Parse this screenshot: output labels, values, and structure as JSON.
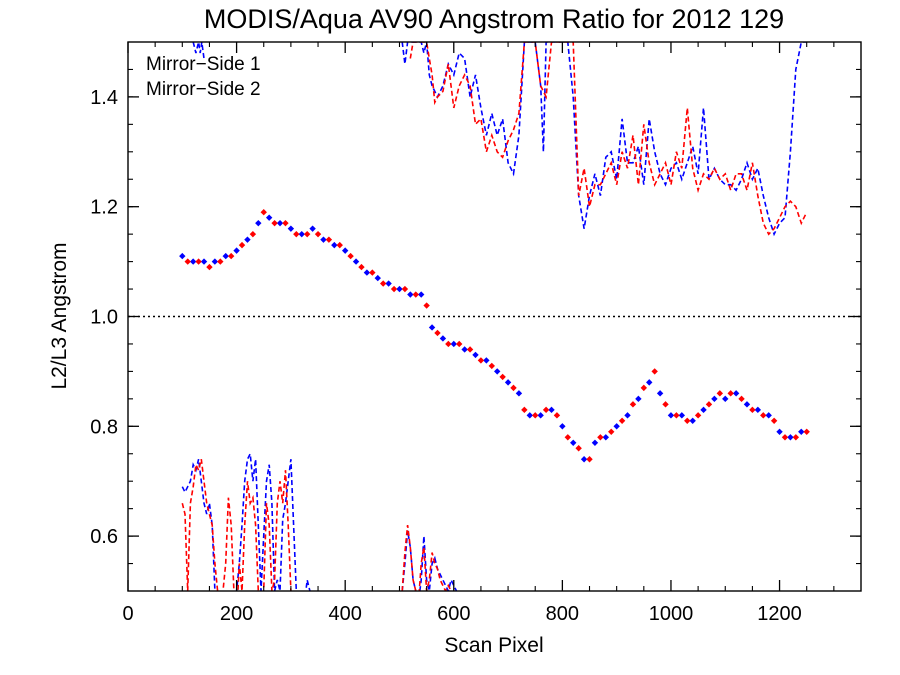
{
  "chart_data": {
    "type": "scatter",
    "title": "MODIS/Aqua AV90 Angstrom Ratio for 2012 129",
    "xlabel": "Scan Pixel",
    "ylabel": "L2/L3 Angstrom",
    "xlim": [
      0,
      1350
    ],
    "ylim": [
      0.5,
      1.5
    ],
    "x_ticks": [
      0,
      200,
      400,
      600,
      800,
      1000,
      1200
    ],
    "x_tick_labels": [
      "0",
      "200",
      "400",
      "600",
      "800",
      "1000",
      "1200"
    ],
    "y_ticks": [
      0.6,
      0.8,
      1.0,
      1.2,
      1.4
    ],
    "y_tick_labels": [
      "0.6",
      "0.8",
      "1.0",
      "1.2",
      "1.4"
    ],
    "reference_line": {
      "y": 1.0,
      "style": "dotted",
      "color": "#000000"
    },
    "legend": {
      "position": "top-left",
      "entries": [
        {
          "label": "Mirror−Side 1",
          "color": "#0000ff"
        },
        {
          "label": "Mirror−Side 2",
          "color": "#ff0000"
        }
      ]
    },
    "grid": false,
    "series": [
      {
        "name": "Mirror−Side 1",
        "color": "#0000ff",
        "marker": "diamond",
        "x": [
          100,
          120,
          140,
          160,
          180,
          200,
          220,
          240,
          260,
          280,
          300,
          320,
          340,
          360,
          380,
          400,
          420,
          440,
          460,
          480,
          500,
          520,
          540,
          560,
          580,
          600,
          620,
          640,
          660,
          680,
          700,
          720,
          740,
          760,
          780,
          800,
          820,
          840,
          860,
          880,
          900,
          920,
          940,
          960,
          980,
          1000,
          1020,
          1040,
          1060,
          1080,
          1100,
          1120,
          1140,
          1160,
          1180,
          1200,
          1220,
          1240
        ],
        "y": [
          1.11,
          1.1,
          1.1,
          1.1,
          1.11,
          1.12,
          1.14,
          1.17,
          1.18,
          1.17,
          1.16,
          1.15,
          1.16,
          1.14,
          1.13,
          1.12,
          1.1,
          1.08,
          1.07,
          1.06,
          1.05,
          1.04,
          1.04,
          0.98,
          0.96,
          0.95,
          0.94,
          0.93,
          0.92,
          0.9,
          0.88,
          0.86,
          0.82,
          0.82,
          0.83,
          0.8,
          0.77,
          0.74,
          0.77,
          0.78,
          0.8,
          0.82,
          0.85,
          0.88,
          0.86,
          0.82,
          0.82,
          0.81,
          0.83,
          0.85,
          0.85,
          0.86,
          0.84,
          0.83,
          0.82,
          0.79,
          0.78,
          0.79
        ]
      },
      {
        "name": "Mirror−Side 2",
        "color": "#ff0000",
        "marker": "diamond",
        "x": [
          110,
          130,
          150,
          170,
          190,
          210,
          230,
          250,
          270,
          290,
          310,
          330,
          350,
          370,
          390,
          410,
          430,
          450,
          470,
          490,
          510,
          530,
          550,
          570,
          590,
          610,
          630,
          650,
          670,
          690,
          710,
          730,
          750,
          770,
          790,
          810,
          830,
          850,
          870,
          890,
          910,
          930,
          950,
          970,
          990,
          1010,
          1030,
          1050,
          1070,
          1090,
          1110,
          1130,
          1150,
          1170,
          1190,
          1210,
          1230,
          1250
        ],
        "y": [
          1.1,
          1.1,
          1.09,
          1.1,
          1.11,
          1.13,
          1.15,
          1.19,
          1.17,
          1.17,
          1.15,
          1.15,
          1.15,
          1.14,
          1.13,
          1.11,
          1.09,
          1.08,
          1.06,
          1.05,
          1.05,
          1.04,
          1.02,
          0.97,
          0.95,
          0.95,
          0.94,
          0.92,
          0.91,
          0.89,
          0.87,
          0.83,
          0.82,
          0.83,
          0.82,
          0.78,
          0.76,
          0.74,
          0.78,
          0.79,
          0.81,
          0.84,
          0.87,
          0.9,
          0.84,
          0.82,
          0.81,
          0.82,
          0.84,
          0.86,
          0.86,
          0.85,
          0.83,
          0.82,
          0.81,
          0.78,
          0.78,
          0.79
        ]
      },
      {
        "name": "",
        "color": "#0000ff",
        "style": "dashed",
        "segments": [
          {
            "x": [
              120,
              125,
              130,
              133,
              136,
              140
            ],
            "y": [
              1.5,
              1.48,
              1.5,
              1.48,
              1.5,
              1.47
            ]
          },
          {
            "x": [
              505,
              510,
              515,
              520,
              525,
              530,
              540,
              545,
              550,
              555,
              560,
              570,
              580,
              590,
              600,
              610,
              620,
              630,
              640,
              650,
              660,
              670,
              680,
              690,
              700,
              710,
              720,
              730,
              740,
              750,
              760,
              765,
              770,
              775,
              780,
              790,
              800,
              810,
              820,
              830,
              840,
              850,
              860,
              870,
              880,
              890,
              900,
              910,
              920,
              930,
              940,
              950,
              960,
              970,
              980,
              990,
              1000,
              1010,
              1020,
              1030,
              1040,
              1050,
              1060,
              1070,
              1080,
              1090,
              1100,
              1110,
              1120,
              1130,
              1140,
              1150,
              1160,
              1170,
              1180,
              1190,
              1200,
              1210,
              1220,
              1230,
              1240,
              1250
            ],
            "y": [
              1.5,
              1.46,
              1.5,
              1.5,
              1.5,
              1.5,
              1.5,
              1.48,
              1.5,
              1.44,
              1.42,
              1.4,
              1.42,
              1.46,
              1.44,
              1.48,
              1.47,
              1.4,
              1.44,
              1.38,
              1.33,
              1.37,
              1.33,
              1.36,
              1.28,
              1.26,
              1.33,
              1.5,
              1.5,
              1.5,
              1.42,
              1.3,
              1.5,
              1.5,
              1.5,
              1.5,
              1.5,
              1.5,
              1.4,
              1.22,
              1.16,
              1.22,
              1.26,
              1.22,
              1.29,
              1.3,
              1.25,
              1.36,
              1.28,
              1.28,
              1.31,
              1.24,
              1.36,
              1.3,
              1.26,
              1.24,
              1.27,
              1.28,
              1.25,
              1.28,
              1.31,
              1.26,
              1.38,
              1.25,
              1.27,
              1.25,
              1.24,
              1.24,
              1.23,
              1.25,
              1.28,
              1.25,
              1.27,
              1.22,
              1.18,
              1.15,
              1.17,
              1.18,
              1.3,
              1.45,
              1.5,
              1.5
            ]
          }
        ]
      },
      {
        "name": "",
        "color": "#ff0000",
        "style": "dashed",
        "segments": [
          {
            "x": [
              520,
              525,
              530,
              535,
              540,
              545,
              550,
              555,
              560,
              565,
              570,
              580,
              590,
              600,
              610,
              620,
              630,
              640,
              650,
              660,
              670,
              680,
              690,
              700,
              710,
              720,
              730,
              740,
              750,
              760,
              770,
              780,
              790,
              800,
              810,
              820,
              830,
              840,
              850,
              860,
              870,
              880,
              890,
              900,
              910,
              920,
              930,
              940,
              950,
              960,
              970,
              980,
              990,
              1000,
              1010,
              1020,
              1030,
              1040,
              1050,
              1060,
              1070,
              1080,
              1090,
              1100,
              1110,
              1120,
              1130,
              1140,
              1150,
              1160,
              1170,
              1180,
              1190,
              1200,
              1210,
              1220,
              1230,
              1240,
              1250
            ],
            "y": [
              1.47,
              1.5,
              1.5,
              1.5,
              1.5,
              1.5,
              1.5,
              1.47,
              1.44,
              1.39,
              1.4,
              1.41,
              1.46,
              1.38,
              1.42,
              1.44,
              1.42,
              1.35,
              1.36,
              1.3,
              1.33,
              1.3,
              1.29,
              1.32,
              1.34,
              1.37,
              1.5,
              1.5,
              1.5,
              1.42,
              1.4,
              1.5,
              1.5,
              1.5,
              1.5,
              1.5,
              1.22,
              1.27,
              1.2,
              1.24,
              1.24,
              1.26,
              1.28,
              1.24,
              1.3,
              1.27,
              1.33,
              1.24,
              1.35,
              1.28,
              1.24,
              1.26,
              1.28,
              1.24,
              1.3,
              1.27,
              1.38,
              1.27,
              1.23,
              1.26,
              1.25,
              1.27,
              1.25,
              1.26,
              1.23,
              1.26,
              1.26,
              1.23,
              1.28,
              1.22,
              1.17,
              1.15,
              1.16,
              1.18,
              1.2,
              1.21,
              1.2,
              1.17,
              1.19
            ]
          }
        ]
      },
      {
        "name": "",
        "color": "#0000ff",
        "style": "dashed",
        "segments": [
          {
            "x": [
              100,
              105,
              110,
              115,
              120,
              125,
              130,
              135,
              140,
              145,
              150,
              155,
              160,
              165,
              170,
              175,
              180,
              185,
              190,
              195,
              200,
              205,
              210,
              215,
              220,
              225,
              230,
              235,
              240,
              245,
              250,
              255,
              260,
              265,
              270,
              275,
              280,
              285,
              290,
              295,
              300,
              305,
              310,
              315,
              320,
              325,
              330,
              335,
              340
            ],
            "y": [
              0.69,
              0.68,
              0.69,
              0.7,
              0.73,
              0.72,
              0.74,
              0.7,
              0.66,
              0.64,
              0.66,
              0.62,
              0.5,
              0.48,
              0.5,
              0.45,
              0.4,
              0.45,
              0.5,
              0.48,
              0.5,
              0.55,
              0.62,
              0.7,
              0.74,
              0.75,
              0.7,
              0.74,
              0.62,
              0.5,
              0.6,
              0.7,
              0.73,
              0.66,
              0.5,
              0.52,
              0.5,
              0.63,
              0.66,
              0.7,
              0.74,
              0.62,
              0.5,
              0.45,
              0.5,
              0.48,
              0.52,
              0.5,
              0.48
            ]
          },
          {
            "x": [
              505,
              510,
              515,
              520,
              525,
              530,
              535,
              540,
              545,
              550,
              555,
              560,
              565,
              570,
              575,
              580,
              585,
              590,
              595,
              600,
              605,
              610
            ],
            "y": [
              0.5,
              0.55,
              0.61,
              0.58,
              0.52,
              0.5,
              0.48,
              0.52,
              0.6,
              0.52,
              0.5,
              0.55,
              0.56,
              0.54,
              0.53,
              0.52,
              0.51,
              0.5,
              0.52,
              0.51,
              0.5,
              0.49
            ]
          }
        ]
      },
      {
        "name": "",
        "color": "#ff0000",
        "style": "dashed",
        "segments": [
          {
            "x": [
              100,
              105,
              110,
              115,
              120,
              125,
              130,
              135,
              140,
              145,
              150,
              155,
              160,
              165,
              170,
              175,
              180,
              185,
              190,
              195,
              200,
              205,
              210,
              215,
              220,
              225,
              230,
              235,
              240,
              245,
              250,
              255,
              260,
              265,
              270,
              275,
              280,
              285,
              290,
              295,
              300,
              305,
              310
            ],
            "y": [
              0.66,
              0.64,
              0.5,
              0.66,
              0.69,
              0.73,
              0.72,
              0.74,
              0.7,
              0.66,
              0.64,
              0.62,
              0.55,
              0.5,
              0.45,
              0.5,
              0.55,
              0.67,
              0.62,
              0.5,
              0.45,
              0.55,
              0.5,
              0.62,
              0.7,
              0.66,
              0.67,
              0.62,
              0.5,
              0.48,
              0.5,
              0.66,
              0.62,
              0.5,
              0.52,
              0.66,
              0.7,
              0.66,
              0.72,
              0.62,
              0.5,
              0.45,
              0.5
            ]
          },
          {
            "x": [
              505,
              510,
              515,
              520,
              525,
              530,
              535,
              540,
              545,
              550,
              555,
              560,
              565,
              570,
              575,
              580,
              585,
              590,
              595,
              600
            ],
            "y": [
              0.5,
              0.57,
              0.62,
              0.58,
              0.52,
              0.5,
              0.48,
              0.55,
              0.58,
              0.5,
              0.52,
              0.57,
              0.55,
              0.54,
              0.52,
              0.51,
              0.5,
              0.51,
              0.5,
              0.49
            ]
          }
        ]
      }
    ]
  }
}
